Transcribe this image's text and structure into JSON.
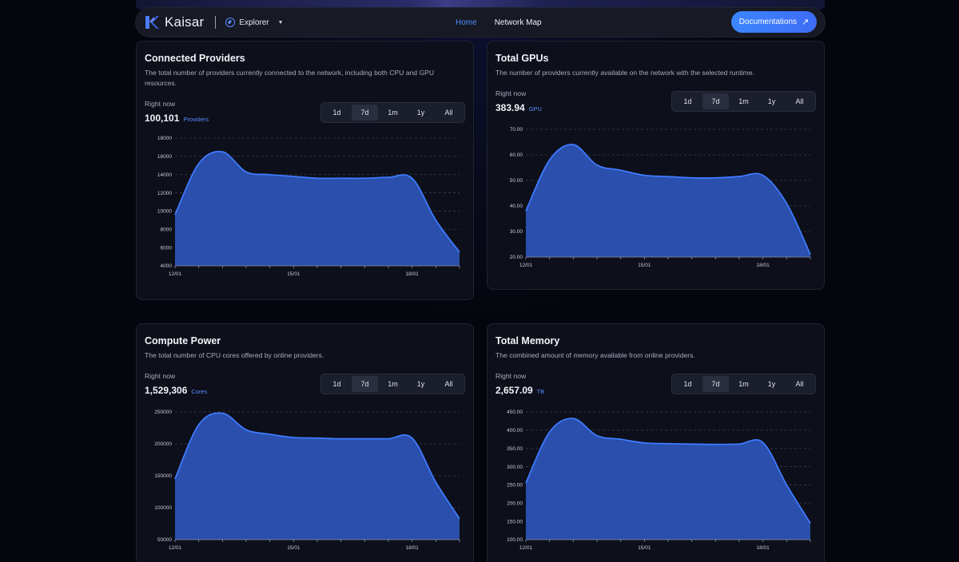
{
  "navbar": {
    "brand": "Kaisar",
    "section": "Explorer",
    "links": [
      "Home",
      "Network Map"
    ],
    "docs_label": "Documentations",
    "accent": "#4f8dff"
  },
  "cards": [
    {
      "title": "Connected Providers",
      "description": "The total number of providers currently connected to the network, including both CPU and GPU resources.",
      "right_now_label": "Right now",
      "value": "100,101",
      "unit": "Providers",
      "ranges": [
        "1d",
        "7d",
        "1m",
        "1y",
        "All"
      ],
      "active_range": "7d"
    },
    {
      "title": "Total GPUs",
      "description": "The number of providers currently available on the network with the selected runtime.",
      "right_now_label": "Right now",
      "value": "383.94",
      "unit": "GPU",
      "ranges": [
        "1d",
        "7d",
        "1m",
        "1y",
        "All"
      ],
      "active_range": "7d"
    },
    {
      "title": "Compute Power",
      "description": "The total number of CPU cores offered by online providers.",
      "right_now_label": "Right now",
      "value": "1,529,306",
      "unit": "Cores",
      "ranges": [
        "1d",
        "7d",
        "1m",
        "1y",
        "All"
      ],
      "active_range": "7d"
    },
    {
      "title": "Total Memory",
      "description": "The combined amount of memory available from online providers.",
      "right_now_label": "Right now",
      "value": "2,657.09",
      "unit": "TB",
      "ranges": [
        "1d",
        "7d",
        "1m",
        "1y",
        "All"
      ],
      "active_range": "7d"
    }
  ],
  "chart_data": [
    {
      "type": "area",
      "title": "Connected Providers",
      "x": [
        0,
        1,
        2,
        3,
        4,
        5,
        6,
        7,
        8,
        9,
        10,
        11,
        12
      ],
      "x_tick_labels": {
        "0": "12/01",
        "5": "15/01",
        "10": "18/01"
      },
      "y_ticks": [
        "18000",
        "16000",
        "14000",
        "12000",
        "10000",
        "8000",
        "6000",
        "4000"
      ],
      "ylim": [
        4000,
        18000
      ],
      "values": [
        9600,
        15200,
        16500,
        14300,
        14000,
        13800,
        13600,
        13600,
        13600,
        13700,
        13600,
        9000,
        5500
      ],
      "grid": "horizontal-dashed",
      "color": "#3f7bff"
    },
    {
      "type": "area",
      "title": "Total GPUs",
      "x": [
        0,
        1,
        2,
        3,
        4,
        5,
        6,
        7,
        8,
        9,
        10,
        11,
        12
      ],
      "x_tick_labels": {
        "0": "12/01",
        "5": "15/01",
        "10": "18/01"
      },
      "y_ticks": [
        "70.00",
        "60.00",
        "50.00",
        "40.00",
        "30.00",
        "20.00"
      ],
      "ylim": [
        20,
        70
      ],
      "values": [
        38,
        58,
        64,
        56,
        54,
        52,
        51.5,
        51,
        51,
        51.5,
        52,
        41,
        21
      ],
      "grid": "horizontal-dashed",
      "color": "#3f7bff"
    },
    {
      "type": "area",
      "title": "Compute Power",
      "x": [
        0,
        1,
        2,
        3,
        4,
        5,
        6,
        7,
        8,
        9,
        10,
        11,
        12
      ],
      "x_tick_labels": {
        "0": "12/01",
        "5": "15/01",
        "10": "18/01"
      },
      "y_ticks": [
        "250000",
        "200000",
        "150000",
        "100000",
        "50000"
      ],
      "ylim": [
        50000,
        250000
      ],
      "values": [
        145000,
        230000,
        248000,
        222000,
        215000,
        210000,
        209000,
        208000,
        208000,
        208000,
        209000,
        140000,
        83000
      ],
      "grid": "horizontal-dashed",
      "color": "#3f7bff"
    },
    {
      "type": "area",
      "title": "Total Memory",
      "x": [
        0,
        1,
        2,
        3,
        4,
        5,
        6,
        7,
        8,
        9,
        10,
        11,
        12
      ],
      "x_tick_labels": {
        "0": "12/01",
        "5": "15/01",
        "10": "18/01"
      },
      "y_ticks": [
        "450.00",
        "400.00",
        "350.00",
        "300.00",
        "250.00",
        "200.00",
        "150.00",
        "100.00"
      ],
      "ylim": [
        100,
        450
      ],
      "values": [
        255,
        395,
        432,
        385,
        375,
        365,
        363,
        362,
        361,
        362,
        366,
        250,
        145
      ],
      "grid": "horizontal-dashed",
      "color": "#3f7bff"
    }
  ]
}
